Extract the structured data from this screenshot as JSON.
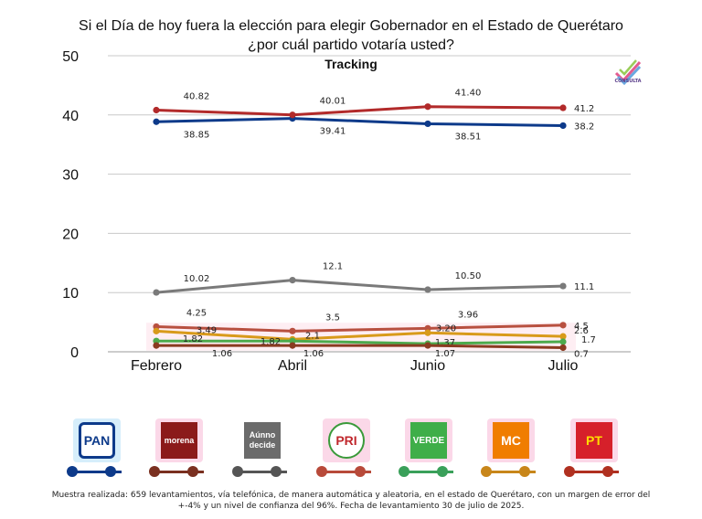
{
  "title_line1": "Si el Día de hoy fuera la elección para elegir Gobernador en el Estado de Querétaro",
  "title_line2": "¿por cuál partido votaría usted?",
  "brand": "CONSULTA",
  "footnote": "Muestra realizada: 659 levantamientos, vía telefónica, de manera automática y aleatoria, en el estado de Querétaro, con un margen de error del +-4% y un nivel de confianza del 96%. Fecha de levantamiento 30 de julio de 2025.",
  "chart_data": {
    "type": "line",
    "title": "Tracking",
    "categories": [
      "Febrero",
      "Abril",
      "Junio",
      "Julio"
    ],
    "ylim": [
      0,
      50
    ],
    "yticks": [
      0,
      10,
      20,
      30,
      40,
      50
    ],
    "grid": true,
    "legend": "bottom",
    "series": [
      {
        "name": "PAN",
        "color": "#0d3a8a",
        "values": [
          38.85,
          39.41,
          38.51,
          38.2
        ],
        "labels": [
          "38.85",
          "39.41",
          "38.51",
          "38.2"
        ],
        "label_pos": [
          "below",
          "below",
          "below",
          "right"
        ]
      },
      {
        "name": "morena",
        "color": "#b22a2a",
        "values": [
          40.82,
          40.01,
          41.4,
          41.2
        ],
        "labels": [
          "40.82",
          "40.01",
          "41.40",
          "41.2"
        ],
        "label_pos": [
          "above",
          "above",
          "above",
          "right"
        ]
      },
      {
        "name": "Aúnno decide",
        "color": "#7a7a7a",
        "values": [
          10.02,
          12.1,
          10.5,
          11.1
        ],
        "labels": [
          "10.02",
          "12.1",
          "10.50",
          "11.1"
        ],
        "label_pos": [
          "above",
          "above",
          "above",
          "right"
        ]
      },
      {
        "name": "PRI",
        "color": "#b85040",
        "values": [
          4.25,
          3.5,
          3.96,
          4.5
        ],
        "labels": [
          "4.25",
          "3.5",
          "3.96",
          "4.5"
        ],
        "label_pos": [
          "above",
          "above",
          "above",
          "right"
        ]
      },
      {
        "name": "MC",
        "color": "#d89a1a",
        "values": [
          3.49,
          2.1,
          3.2,
          2.6
        ],
        "labels": [
          "3.49",
          "2.1",
          "3.20",
          "2.6"
        ],
        "label_pos": [
          "right",
          "right",
          "right",
          "right"
        ]
      },
      {
        "name": "VERDE",
        "color": "#4caa4c",
        "values": [
          1.82,
          1.82,
          1.37,
          1.7
        ],
        "labels": [
          "1.82",
          "1.82",
          "1.37",
          "1.7"
        ],
        "label_pos": [
          "right",
          "left",
          "right",
          "right"
        ]
      },
      {
        "name": "PT",
        "color": "#8a3a20",
        "values": [
          1.06,
          1.06,
          1.07,
          0.7
        ],
        "labels": [
          "1.06",
          "1.06",
          "1.07",
          "0.7"
        ],
        "label_pos": [
          "below",
          "below",
          "below",
          "right"
        ]
      }
    ]
  },
  "legend_items": [
    {
      "name": "pan",
      "logo_text": "PAN",
      "color": "#0d3a8a",
      "logo_bg": "#ffffff",
      "logo_fg": "#0d3a8a",
      "glow": "#d6eefb"
    },
    {
      "name": "morena",
      "logo_text": "morena",
      "color": "#7a3020",
      "logo_bg": "#8b1a1a",
      "logo_fg": "#ffffff",
      "glow": "#fbd8e8"
    },
    {
      "name": "aunno-decide",
      "logo_text": "Aúnno decide",
      "color": "#555555",
      "logo_bg": "#6b6b6b",
      "logo_fg": "#ffffff",
      "glow": "#ffffff"
    },
    {
      "name": "pri",
      "logo_text": "PRI",
      "color": "#b84a3a",
      "logo_bg": "#ffffff",
      "logo_fg": "#c0282d",
      "glow": "#fbd8e8"
    },
    {
      "name": "verde",
      "logo_text": "VERDE",
      "color": "#3aa05a",
      "logo_bg": "#3fae49",
      "logo_fg": "#ffffff",
      "glow": "#fbd8e8"
    },
    {
      "name": "mc",
      "logo_text": "MC",
      "color": "#c8861a",
      "logo_bg": "#f07d00",
      "logo_fg": "#ffffff",
      "glow": "#fbd8e8"
    },
    {
      "name": "pt",
      "logo_text": "PT",
      "color": "#b03020",
      "logo_bg": "#d6202a",
      "logo_fg": "#ffdd00",
      "glow": "#fbd8e8"
    }
  ]
}
